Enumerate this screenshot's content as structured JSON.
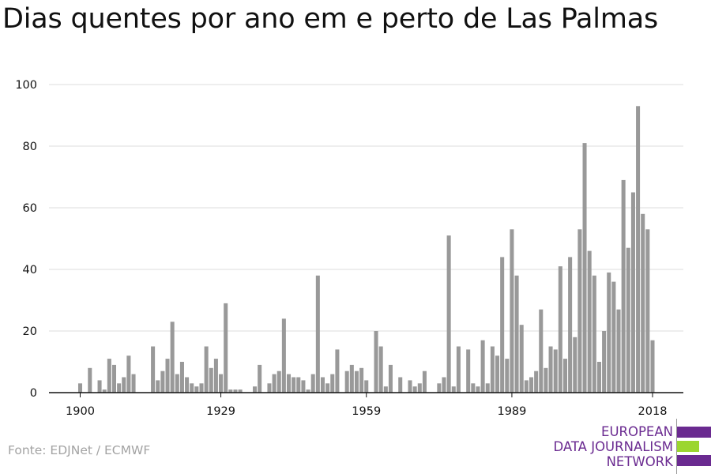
{
  "title": "Dias quentes por ano em e perto de Las Palmas",
  "source": "Fonte: EDJNet / ECMWF",
  "logo": {
    "lines": [
      "EUROPEAN",
      "DATA JOURNALISM",
      "NETWORK"
    ],
    "text_color": "#6a2a90",
    "bar_colors": [
      "#6a2a90",
      "#9bd62f",
      "#6a2a90"
    ]
  },
  "colors": {
    "bar": "#999999",
    "grid": "#dddddd",
    "axis": "#111111",
    "tick_text": "#111111"
  },
  "chart_data": {
    "type": "bar",
    "title": "Dias quentes por ano em e perto de Las Palmas",
    "xlabel": "",
    "ylabel": "",
    "x_range": [
      1900,
      2018
    ],
    "ylim": [
      0,
      100
    ],
    "y_ticks": [
      0,
      20,
      40,
      60,
      80,
      100
    ],
    "x_ticks": [
      1900,
      1929,
      1959,
      1989,
      2018
    ],
    "grid": true,
    "legend": "none",
    "x": [
      1900,
      1901,
      1902,
      1903,
      1904,
      1905,
      1906,
      1907,
      1908,
      1909,
      1910,
      1911,
      1912,
      1913,
      1914,
      1915,
      1916,
      1917,
      1918,
      1919,
      1920,
      1921,
      1922,
      1923,
      1924,
      1925,
      1926,
      1927,
      1928,
      1929,
      1930,
      1931,
      1932,
      1933,
      1934,
      1935,
      1936,
      1937,
      1938,
      1939,
      1940,
      1941,
      1942,
      1943,
      1944,
      1945,
      1946,
      1947,
      1948,
      1949,
      1950,
      1951,
      1952,
      1953,
      1954,
      1955,
      1956,
      1957,
      1958,
      1959,
      1960,
      1961,
      1962,
      1963,
      1964,
      1965,
      1966,
      1967,
      1968,
      1969,
      1970,
      1971,
      1972,
      1973,
      1974,
      1975,
      1976,
      1977,
      1978,
      1979,
      1980,
      1981,
      1982,
      1983,
      1984,
      1985,
      1986,
      1987,
      1988,
      1989,
      1990,
      1991,
      1992,
      1993,
      1994,
      1995,
      1996,
      1997,
      1998,
      1999,
      2000,
      2001,
      2002,
      2003,
      2004,
      2005,
      2006,
      2007,
      2008,
      2009,
      2010,
      2011,
      2012,
      2013,
      2014,
      2015,
      2016,
      2017,
      2018
    ],
    "values": [
      3,
      0,
      8,
      0,
      4,
      1,
      11,
      9,
      3,
      5,
      12,
      6,
      0,
      0,
      0,
      15,
      4,
      7,
      11,
      23,
      6,
      10,
      5,
      3,
      2,
      3,
      15,
      8,
      11,
      6,
      29,
      1,
      1,
      1,
      0,
      0,
      2,
      9,
      0,
      3,
      6,
      7,
      24,
      6,
      5,
      5,
      4,
      1,
      6,
      38,
      5,
      3,
      6,
      14,
      0,
      7,
      9,
      7,
      8,
      4,
      0,
      20,
      15,
      2,
      9,
      0,
      5,
      0,
      4,
      2,
      3,
      7,
      0,
      0,
      3,
      5,
      51,
      2,
      15,
      0,
      14,
      3,
      2,
      17,
      3,
      15,
      12,
      44,
      11,
      53,
      38,
      22,
      4,
      5,
      7,
      27,
      8,
      15,
      14,
      41,
      11,
      44,
      18,
      53,
      81,
      46,
      38,
      10,
      20,
      39,
      36,
      27,
      69,
      47,
      65,
      93,
      58,
      53,
      17
    ]
  }
}
